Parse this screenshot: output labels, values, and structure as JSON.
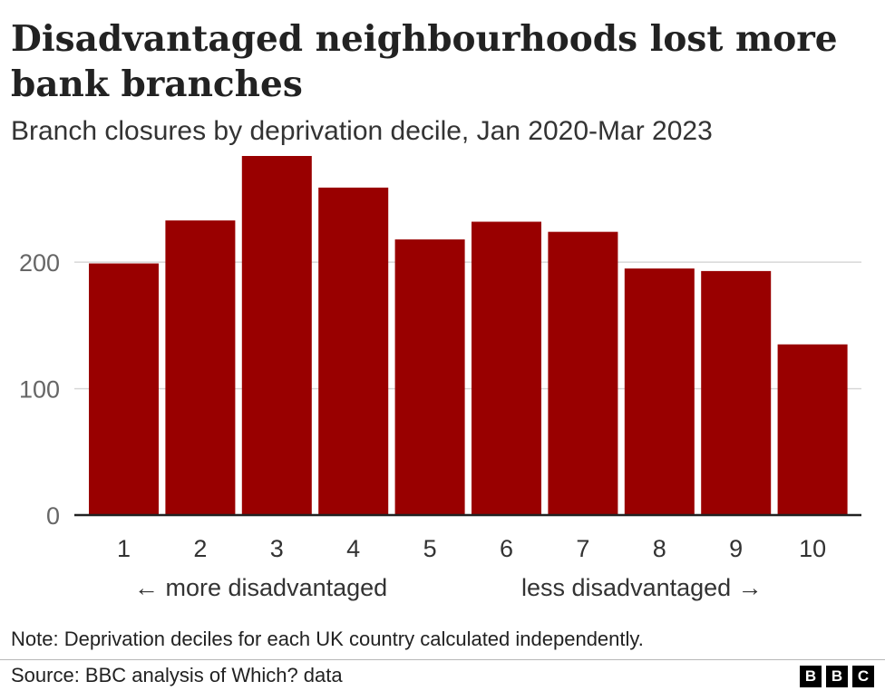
{
  "header": {
    "title": "Disadvantaged neighbourhoods lost more bank branches",
    "subtitle": "Branch closures by deprivation decile, Jan 2020-Mar 2023"
  },
  "axis_notes": {
    "left": "← more disadvantaged",
    "right": "less disadvantaged →"
  },
  "footer": {
    "note": "Note: Deprivation deciles for each UK country calculated independently.",
    "source": "Source: BBC analysis of Which? data",
    "logo": [
      "B",
      "B",
      "C"
    ]
  },
  "colors": {
    "bar": "#990000",
    "gridline": "#d8d8d8",
    "baseline": "#222222",
    "tick_text": "#666666",
    "category_text": "#333333"
  },
  "chart_data": {
    "type": "bar",
    "title": "Disadvantaged neighbourhoods lost more bank branches",
    "subtitle": "Branch closures by deprivation decile, Jan 2020-Mar 2023",
    "xlabel": "",
    "ylabel": "",
    "categories": [
      "1",
      "2",
      "3",
      "4",
      "5",
      "6",
      "7",
      "8",
      "9",
      "10"
    ],
    "values": [
      199,
      233,
      284,
      259,
      218,
      232,
      224,
      195,
      193,
      135
    ],
    "ylim": [
      0,
      284
    ],
    "yticks": [
      0,
      100,
      200
    ],
    "grid": true,
    "legend": "none"
  }
}
